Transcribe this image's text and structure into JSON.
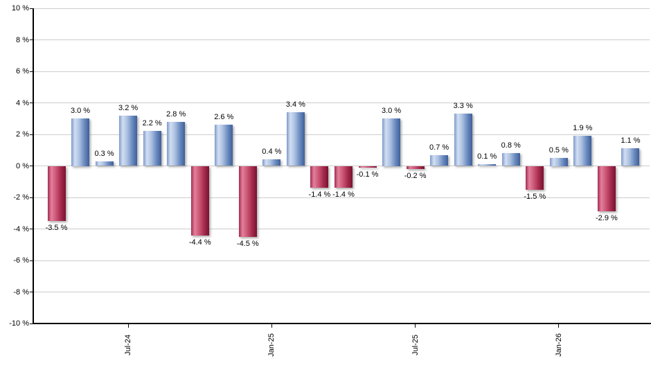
{
  "chart_data": {
    "type": "bar",
    "title": "",
    "xlabel": "",
    "ylabel": "",
    "ylim": [
      -10,
      10
    ],
    "grid": true,
    "legend": "none",
    "colors": {
      "positive_light": "#d2def2",
      "positive_dark": "#3e5f9a",
      "negative_light": "#e2809b",
      "negative_dark": "#7a1230",
      "gridline": "#cccccc",
      "axis": "#000000",
      "text": "#000000"
    },
    "y_ticks": [
      {
        "label": "10 %",
        "value": 10
      },
      {
        "label": "8 %",
        "value": 8
      },
      {
        "label": "6 %",
        "value": 6
      },
      {
        "label": "4 %",
        "value": 4
      },
      {
        "label": "2 %",
        "value": 2
      },
      {
        "label": "0 %",
        "value": 0
      },
      {
        "label": "-2 %",
        "value": -2
      },
      {
        "label": "-4 %",
        "value": -4
      },
      {
        "label": "-6 %",
        "value": -6
      },
      {
        "label": "-8 %",
        "value": -8
      },
      {
        "label": "-10 %",
        "value": -10
      }
    ],
    "x_ticks": [
      {
        "label": "Jul-24",
        "bar_index": 3
      },
      {
        "label": "Jan-25",
        "bar_index": 9
      },
      {
        "label": "Jul-25",
        "bar_index": 15
      },
      {
        "label": "Jan-26",
        "bar_index": 21
      }
    ],
    "bars": [
      {
        "value": -3.5,
        "label": "-3.5 %"
      },
      {
        "value": 3.0,
        "label": "3.0 %"
      },
      {
        "value": 0.3,
        "label": "0.3 %"
      },
      {
        "value": 3.2,
        "label": "3.2 %"
      },
      {
        "value": 2.2,
        "label": "2.2 %"
      },
      {
        "value": 2.8,
        "label": "2.8 %"
      },
      {
        "value": -4.4,
        "label": "-4.4 %"
      },
      {
        "value": 2.6,
        "label": "2.6 %"
      },
      {
        "value": -4.5,
        "label": "-4.5 %"
      },
      {
        "value": 0.4,
        "label": "0.4 %"
      },
      {
        "value": 3.4,
        "label": "3.4 %"
      },
      {
        "value": -1.4,
        "label": "-1.4 %"
      },
      {
        "value": -1.4,
        "label": "-1.4 %"
      },
      {
        "value": -0.1,
        "label": "-0.1 %"
      },
      {
        "value": 3.0,
        "label": "3.0 %"
      },
      {
        "value": -0.2,
        "label": "-0.2 %"
      },
      {
        "value": 0.7,
        "label": "0.7 %"
      },
      {
        "value": 3.3,
        "label": "3.3 %"
      },
      {
        "value": 0.1,
        "label": "0.1 %"
      },
      {
        "value": 0.8,
        "label": "0.8 %"
      },
      {
        "value": -1.5,
        "label": "-1.5 %"
      },
      {
        "value": 0.5,
        "label": "0.5 %"
      },
      {
        "value": 1.9,
        "label": "1.9 %"
      },
      {
        "value": -2.9,
        "label": "-2.9 %"
      },
      {
        "value": 1.1,
        "label": "1.1 %"
      }
    ]
  }
}
